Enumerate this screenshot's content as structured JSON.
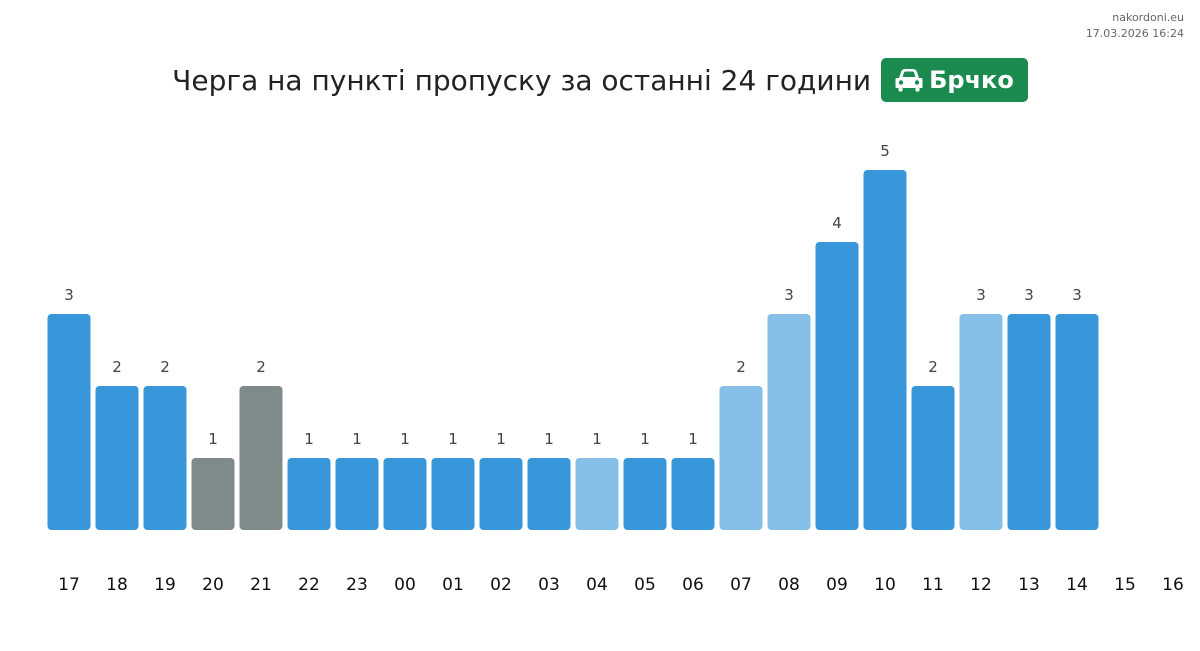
{
  "site": {
    "name": "nakordoni.eu",
    "timestamp": "17.03.2026 16:24"
  },
  "header": {
    "title": "Черга на пункті пропуску за останні 24 години",
    "badge_label": "Брчко",
    "badge_icon": "car-icon",
    "badge_color": "#1a8a4f"
  },
  "colors": {
    "blue": "#3897db",
    "light": "#85bfe8",
    "gray": "#7f8b8b"
  },
  "chart_data": {
    "type": "bar",
    "categories": [
      "17",
      "18",
      "19",
      "20",
      "21",
      "22",
      "23",
      "00",
      "01",
      "02",
      "03",
      "04",
      "05",
      "06",
      "07",
      "08",
      "09",
      "10",
      "11",
      "12",
      "13",
      "14",
      "15",
      "16"
    ],
    "values": [
      3,
      2,
      2,
      1,
      2,
      1,
      1,
      1,
      1,
      1,
      1,
      1,
      1,
      1,
      2,
      3,
      4,
      5,
      2,
      3,
      3,
      3,
      null,
      null
    ],
    "bar_colors": [
      "blue",
      "blue",
      "blue",
      "gray",
      "gray",
      "blue",
      "blue",
      "blue",
      "blue",
      "blue",
      "blue",
      "light",
      "blue",
      "blue",
      "light",
      "light",
      "blue",
      "blue",
      "blue",
      "light",
      "blue",
      "blue",
      null,
      null
    ],
    "ylim": [
      0,
      5
    ],
    "grid": false,
    "legend": "none"
  }
}
